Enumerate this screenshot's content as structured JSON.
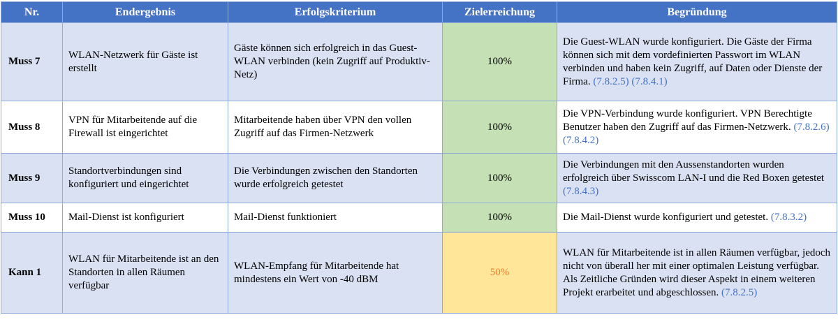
{
  "headers": [
    "Nr.",
    "Endergebnis",
    "Erfolgskriterium",
    "Zielerreichung",
    "Begründung"
  ],
  "rows": [
    {
      "nr": "Muss 7",
      "result": "WLAN-Netzwerk für Gäste ist erstellt",
      "criterion": "Gäste können sich erfolgreich in das Guest-WLAN verbinden (kein Zugriff auf Produktiv-Netz)",
      "achievement": "100%",
      "reason": "Die Guest-WLAN wurde konfiguriert. Die Gäste der Firma können sich mit dem vordefinierten Passwort im WLAN verbinden und haben kein Zugriff, auf Daten oder Dienste der Firma.",
      "refs": "(7.8.2.5) (7.8.4.1)"
    },
    {
      "nr": "Muss 8",
      "result": "VPN für Mitarbeitende auf die Firewall ist eingerichtet",
      "criterion": "Mitarbeitende haben über VPN den vollen Zugriff auf das Firmen-Netzwerk",
      "achievement": "100%",
      "reason": "Die VPN-Verbindung wurde konfiguriert. VPN Berechtigte Benutzer haben den Zugriff auf das Firmen-Netzwerk.",
      "refs": "(7.8.2.6) (7.8.4.2)"
    },
    {
      "nr": "Muss 9",
      "result": "Standortverbindungen sind konfiguriert und eingerichtet",
      "criterion": "Die Verbindungen zwischen den Standorten wurde erfolgreich getestet",
      "achievement": "100%",
      "reason": "Die Verbindungen mit den Aussenstandorten wurden erfolgreich über Swisscom LAN-I und die Red Boxen getestet",
      "refs": "(7.8.4.3)"
    },
    {
      "nr": "Muss 10",
      "result": "Mail-Dienst ist konfiguriert",
      "criterion": "Mail-Dienst funktioniert",
      "achievement": "100%",
      "reason": "Die Mail-Dienst wurde konfiguriert und getestet.",
      "refs": "(7.8.3.2)"
    },
    {
      "nr": "Kann 1",
      "result": "WLAN für Mitarbeitende ist an den Standorten in allen Räumen verfügbar",
      "criterion": "WLAN-Empfang für Mitarbeitende hat mindestens ein Wert von -40 dBM",
      "achievement": "50%",
      "reason": "WLAN für Mitarbeitende ist in allen Räumen verfügbar, jedoch nicht von überall her mit einer optimalen Leistung verfügbar. Als Zeitliche Gründen wird dieser Aspekt in einem weiteren Projekt erarbeitet und abgeschlossen.",
      "refs": "(7.8.2.5)"
    }
  ],
  "colors": {
    "header_bg": "#4472c4",
    "row_shade": "#d9e1f2",
    "achieved_full": "#c5e0b4",
    "achieved_partial": "#ffe699",
    "partial_text": "#ed7d31",
    "reference_text": "#4472c4"
  }
}
